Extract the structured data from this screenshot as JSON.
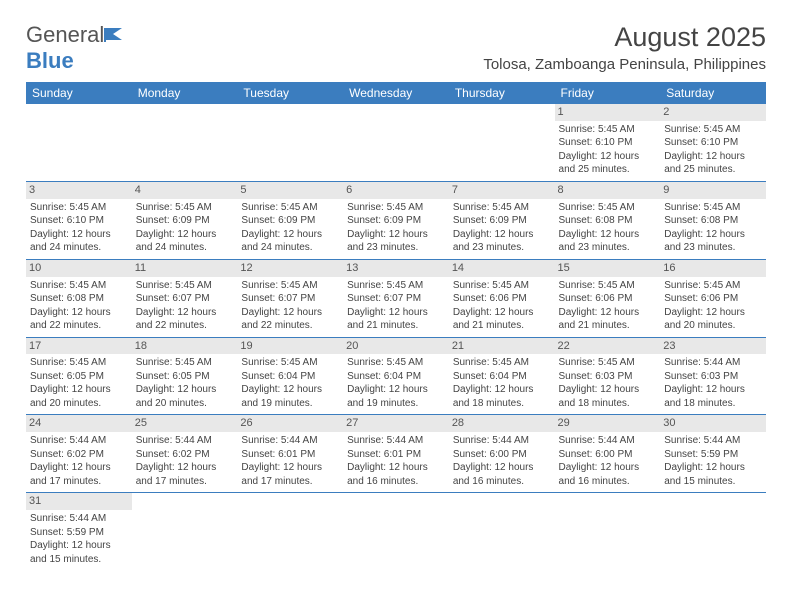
{
  "logo": {
    "word1": "General",
    "word2": "Blue"
  },
  "title": "August 2025",
  "location": "Tolosa, Zamboanga Peninsula, Philippines",
  "colors": {
    "header_bg": "#3b7dbf",
    "header_text": "#ffffff",
    "daynum_bg": "#e8e8e8",
    "rule": "#3b7dbf"
  },
  "weekdays": [
    "Sunday",
    "Monday",
    "Tuesday",
    "Wednesday",
    "Thursday",
    "Friday",
    "Saturday"
  ],
  "weeks": [
    [
      null,
      null,
      null,
      null,
      null,
      {
        "n": "1",
        "sr": "Sunrise: 5:45 AM",
        "ss": "Sunset: 6:10 PM",
        "dl": "Daylight: 12 hours and 25 minutes."
      },
      {
        "n": "2",
        "sr": "Sunrise: 5:45 AM",
        "ss": "Sunset: 6:10 PM",
        "dl": "Daylight: 12 hours and 25 minutes."
      }
    ],
    [
      {
        "n": "3",
        "sr": "Sunrise: 5:45 AM",
        "ss": "Sunset: 6:10 PM",
        "dl": "Daylight: 12 hours and 24 minutes."
      },
      {
        "n": "4",
        "sr": "Sunrise: 5:45 AM",
        "ss": "Sunset: 6:09 PM",
        "dl": "Daylight: 12 hours and 24 minutes."
      },
      {
        "n": "5",
        "sr": "Sunrise: 5:45 AM",
        "ss": "Sunset: 6:09 PM",
        "dl": "Daylight: 12 hours and 24 minutes."
      },
      {
        "n": "6",
        "sr": "Sunrise: 5:45 AM",
        "ss": "Sunset: 6:09 PM",
        "dl": "Daylight: 12 hours and 23 minutes."
      },
      {
        "n": "7",
        "sr": "Sunrise: 5:45 AM",
        "ss": "Sunset: 6:09 PM",
        "dl": "Daylight: 12 hours and 23 minutes."
      },
      {
        "n": "8",
        "sr": "Sunrise: 5:45 AM",
        "ss": "Sunset: 6:08 PM",
        "dl": "Daylight: 12 hours and 23 minutes."
      },
      {
        "n": "9",
        "sr": "Sunrise: 5:45 AM",
        "ss": "Sunset: 6:08 PM",
        "dl": "Daylight: 12 hours and 23 minutes."
      }
    ],
    [
      {
        "n": "10",
        "sr": "Sunrise: 5:45 AM",
        "ss": "Sunset: 6:08 PM",
        "dl": "Daylight: 12 hours and 22 minutes."
      },
      {
        "n": "11",
        "sr": "Sunrise: 5:45 AM",
        "ss": "Sunset: 6:07 PM",
        "dl": "Daylight: 12 hours and 22 minutes."
      },
      {
        "n": "12",
        "sr": "Sunrise: 5:45 AM",
        "ss": "Sunset: 6:07 PM",
        "dl": "Daylight: 12 hours and 22 minutes."
      },
      {
        "n": "13",
        "sr": "Sunrise: 5:45 AM",
        "ss": "Sunset: 6:07 PM",
        "dl": "Daylight: 12 hours and 21 minutes."
      },
      {
        "n": "14",
        "sr": "Sunrise: 5:45 AM",
        "ss": "Sunset: 6:06 PM",
        "dl": "Daylight: 12 hours and 21 minutes."
      },
      {
        "n": "15",
        "sr": "Sunrise: 5:45 AM",
        "ss": "Sunset: 6:06 PM",
        "dl": "Daylight: 12 hours and 21 minutes."
      },
      {
        "n": "16",
        "sr": "Sunrise: 5:45 AM",
        "ss": "Sunset: 6:06 PM",
        "dl": "Daylight: 12 hours and 20 minutes."
      }
    ],
    [
      {
        "n": "17",
        "sr": "Sunrise: 5:45 AM",
        "ss": "Sunset: 6:05 PM",
        "dl": "Daylight: 12 hours and 20 minutes."
      },
      {
        "n": "18",
        "sr": "Sunrise: 5:45 AM",
        "ss": "Sunset: 6:05 PM",
        "dl": "Daylight: 12 hours and 20 minutes."
      },
      {
        "n": "19",
        "sr": "Sunrise: 5:45 AM",
        "ss": "Sunset: 6:04 PM",
        "dl": "Daylight: 12 hours and 19 minutes."
      },
      {
        "n": "20",
        "sr": "Sunrise: 5:45 AM",
        "ss": "Sunset: 6:04 PM",
        "dl": "Daylight: 12 hours and 19 minutes."
      },
      {
        "n": "21",
        "sr": "Sunrise: 5:45 AM",
        "ss": "Sunset: 6:04 PM",
        "dl": "Daylight: 12 hours and 18 minutes."
      },
      {
        "n": "22",
        "sr": "Sunrise: 5:45 AM",
        "ss": "Sunset: 6:03 PM",
        "dl": "Daylight: 12 hours and 18 minutes."
      },
      {
        "n": "23",
        "sr": "Sunrise: 5:44 AM",
        "ss": "Sunset: 6:03 PM",
        "dl": "Daylight: 12 hours and 18 minutes."
      }
    ],
    [
      {
        "n": "24",
        "sr": "Sunrise: 5:44 AM",
        "ss": "Sunset: 6:02 PM",
        "dl": "Daylight: 12 hours and 17 minutes."
      },
      {
        "n": "25",
        "sr": "Sunrise: 5:44 AM",
        "ss": "Sunset: 6:02 PM",
        "dl": "Daylight: 12 hours and 17 minutes."
      },
      {
        "n": "26",
        "sr": "Sunrise: 5:44 AM",
        "ss": "Sunset: 6:01 PM",
        "dl": "Daylight: 12 hours and 17 minutes."
      },
      {
        "n": "27",
        "sr": "Sunrise: 5:44 AM",
        "ss": "Sunset: 6:01 PM",
        "dl": "Daylight: 12 hours and 16 minutes."
      },
      {
        "n": "28",
        "sr": "Sunrise: 5:44 AM",
        "ss": "Sunset: 6:00 PM",
        "dl": "Daylight: 12 hours and 16 minutes."
      },
      {
        "n": "29",
        "sr": "Sunrise: 5:44 AM",
        "ss": "Sunset: 6:00 PM",
        "dl": "Daylight: 12 hours and 16 minutes."
      },
      {
        "n": "30",
        "sr": "Sunrise: 5:44 AM",
        "ss": "Sunset: 5:59 PM",
        "dl": "Daylight: 12 hours and 15 minutes."
      }
    ],
    [
      {
        "n": "31",
        "sr": "Sunrise: 5:44 AM",
        "ss": "Sunset: 5:59 PM",
        "dl": "Daylight: 12 hours and 15 minutes."
      },
      null,
      null,
      null,
      null,
      null,
      null
    ]
  ]
}
